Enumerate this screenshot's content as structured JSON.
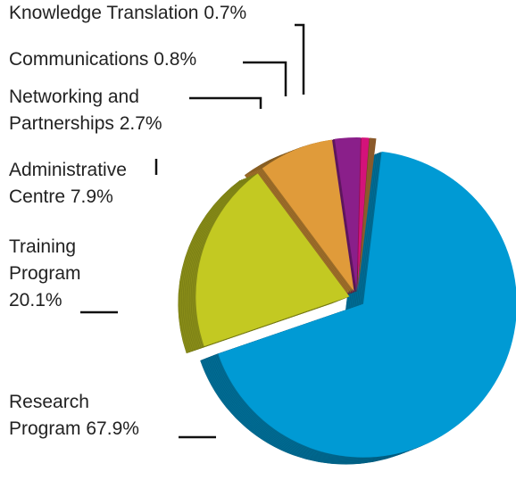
{
  "chart_data": {
    "type": "pie",
    "categories": [
      "Research Program",
      "Training Program",
      "Administrative Centre",
      "Networking and Partnerships",
      "Communications",
      "Knowledge Translation"
    ],
    "values": [
      67.9,
      20.1,
      7.9,
      2.7,
      0.8,
      0.7
    ],
    "value_labels": [
      "67.9%",
      "20.1%",
      "7.9%",
      "2.7%",
      "0.8%",
      "0.7%"
    ],
    "colors": [
      "#009ad4",
      "#c3c922",
      "#e09b3a",
      "#8a1f8a",
      "#d4127a",
      "#8b5a2b"
    ]
  }
}
